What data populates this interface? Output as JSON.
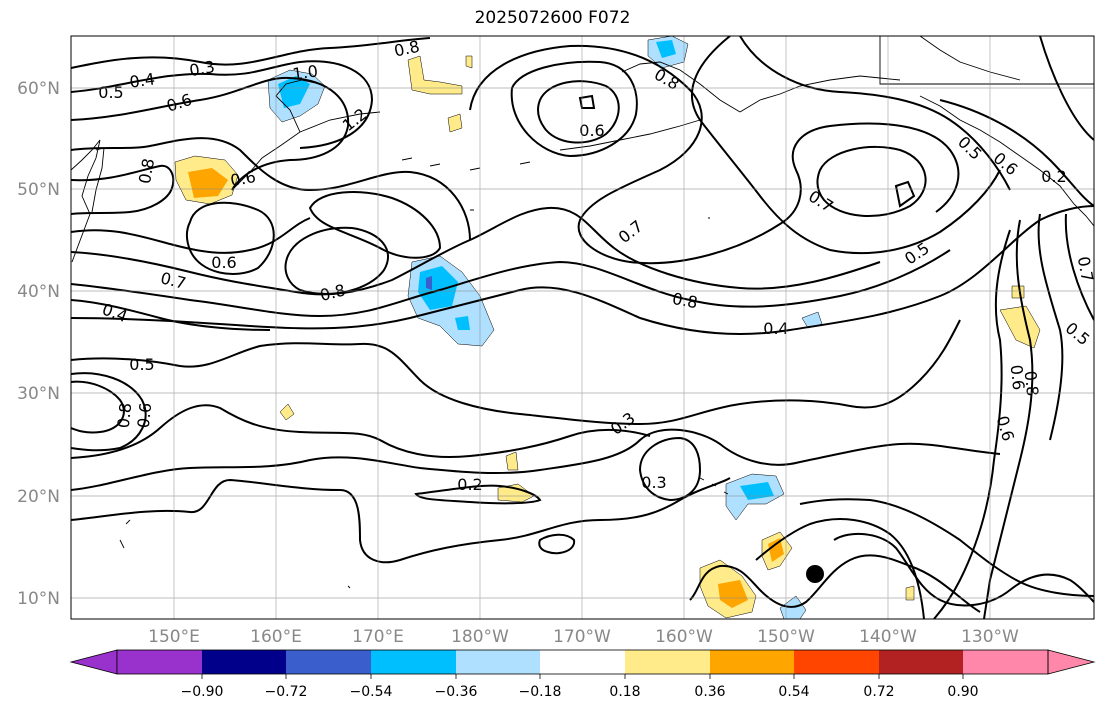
{
  "title": "2025072600 F072",
  "lat_ticks": [
    "60°N",
    "50°N",
    "40°N",
    "30°N",
    "20°N",
    "10°N"
  ],
  "lon_ticks": [
    "150°E",
    "160°E",
    "170°E",
    "180°W",
    "170°W",
    "160°W",
    "150°W",
    "140°W",
    "130°W"
  ],
  "contour_labels": [
    "0.3",
    "0.4",
    "0.5",
    "0.6",
    "0.8",
    "1.0",
    "1.2",
    "0.8",
    "0.6",
    "0.8",
    "0.6",
    "0.7",
    "0.4",
    "0.5",
    "0.8",
    "0.6",
    "0.8",
    "0.6",
    "0.7",
    "0.8",
    "0.5",
    "0.6",
    "0.7",
    "0.5",
    "0.4",
    "0.7",
    "0.2",
    "0.6",
    "0.8",
    "0.6",
    "0.5",
    "0.3",
    "0.2",
    "0.3"
  ],
  "colorbar": {
    "tick_labels": [
      "−0.90",
      "−0.72",
      "−0.54",
      "−0.36",
      "−0.18",
      "0.18",
      "0.36",
      "0.54",
      "0.72",
      "0.90"
    ],
    "colors": [
      "#9932cc",
      "#00008b",
      "#3a5fcd",
      "#00bfff",
      "#b0e0ff",
      "#ffffff",
      "#ffeb8a",
      "#ffa500",
      "#ff4500",
      "#b22222",
      "#ff88aa"
    ]
  }
}
